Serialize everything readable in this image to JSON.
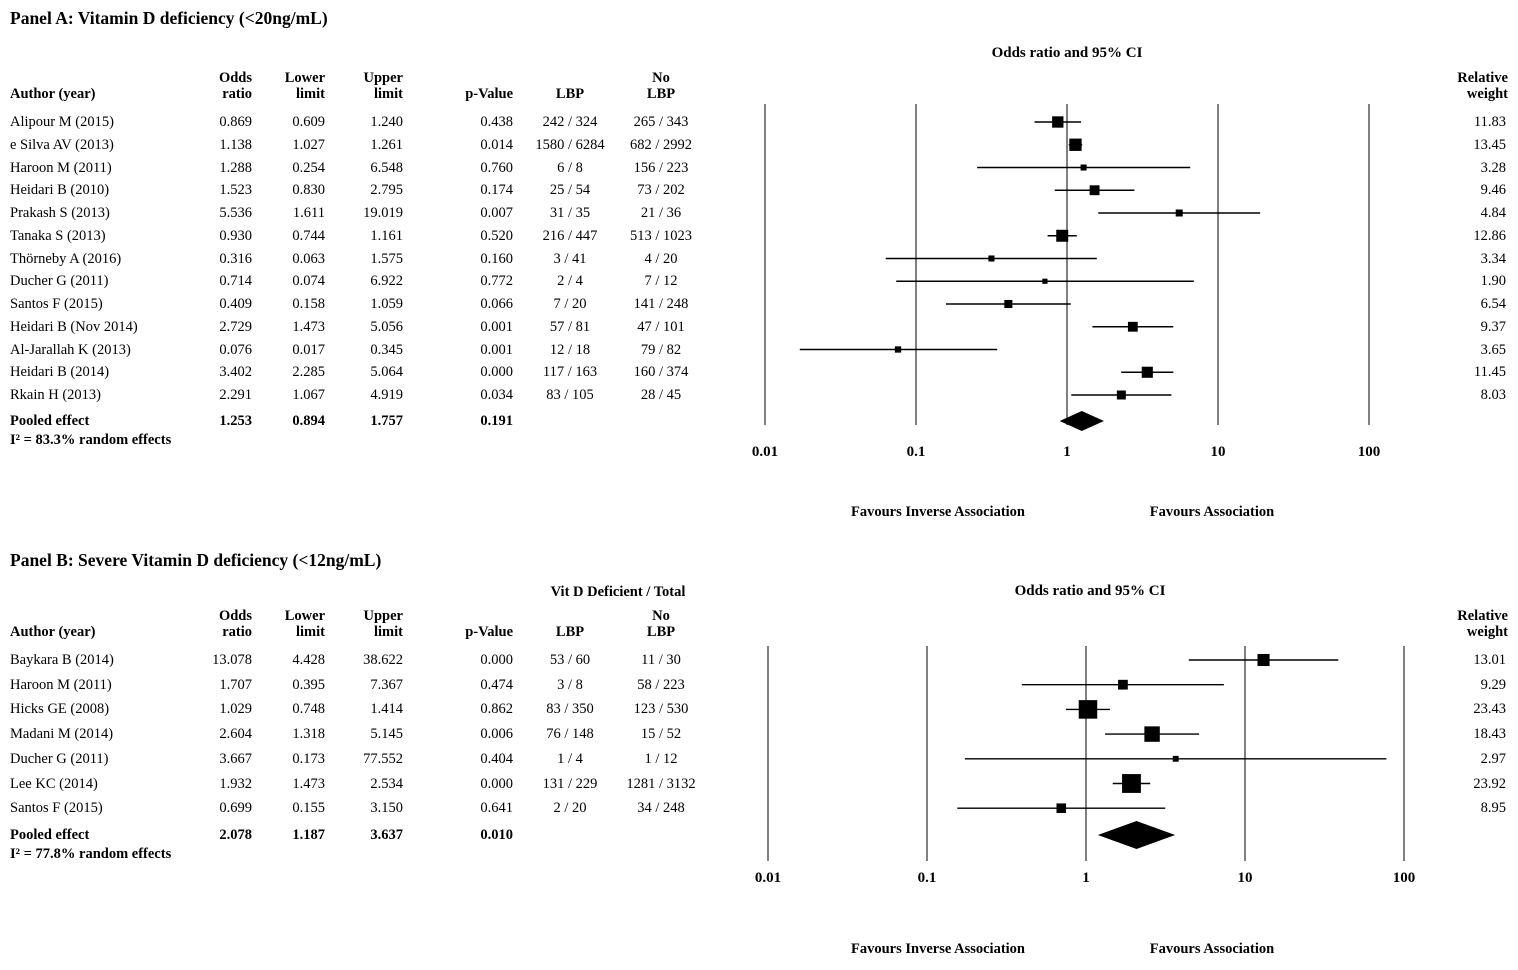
{
  "colors": {
    "ink": "#000000",
    "background": "#ffffff"
  },
  "chart_data": [
    {
      "type": "forest",
      "title": "Panel A: Vitamin D deficiency (<20ng/mL)",
      "plot_title": "Odds ratio and 95% CI",
      "headers": {
        "author": "Author (year)",
        "or1": "Odds",
        "or2": "ratio",
        "lower1": "Lower",
        "lower2": "limit",
        "upper1": "Upper",
        "upper2": "limit",
        "p": "p-Value",
        "lbp": "LBP",
        "nolbp1": "No",
        "nolbp2": "LBP",
        "weight1": "Relative",
        "weight2": "weight"
      },
      "x_axis": {
        "scale": "log",
        "min": 0.01,
        "max": 100,
        "ticks": [
          0.01,
          0.1,
          1,
          10,
          100
        ],
        "tick_labels": [
          "0.01",
          "0.1",
          "1",
          "10",
          "100"
        ]
      },
      "favours_left": "Favours Inverse Association",
      "favours_right": "Favours Association",
      "heterogeneity": "I² = 83.3% random effects",
      "studies": [
        {
          "author": "Alipour M (2015)",
          "or": 0.869,
          "lower": 0.609,
          "upper": 1.24,
          "p": "0.438",
          "lbp": "242 / 324",
          "no_lbp": "265 / 343",
          "weight": 11.83
        },
        {
          "author": "e Silva AV (2013)",
          "or": 1.138,
          "lower": 1.027,
          "upper": 1.261,
          "p": "0.014",
          "lbp": "1580 / 6284",
          "no_lbp": "682 / 2992",
          "weight": 13.45
        },
        {
          "author": "Haroon M (2011)",
          "or": 1.288,
          "lower": 0.254,
          "upper": 6.548,
          "p": "0.760",
          "lbp": "6 / 8",
          "no_lbp": "156 / 223",
          "weight": 3.28
        },
        {
          "author": "Heidari B (2010)",
          "or": 1.523,
          "lower": 0.83,
          "upper": 2.795,
          "p": "0.174",
          "lbp": "25 / 54",
          "no_lbp": "73 / 202",
          "weight": 9.46
        },
        {
          "author": "Prakash S (2013)",
          "or": 5.536,
          "lower": 1.611,
          "upper": 19.019,
          "p": "0.007",
          "lbp": "31 / 35",
          "no_lbp": "21 / 36",
          "weight": 4.84
        },
        {
          "author": "Tanaka S (2013)",
          "or": 0.93,
          "lower": 0.744,
          "upper": 1.161,
          "p": "0.520",
          "lbp": "216 / 447",
          "no_lbp": "513 / 1023",
          "weight": 12.86
        },
        {
          "author": "Thörneby A (2016)",
          "or": 0.316,
          "lower": 0.063,
          "upper": 1.575,
          "p": "0.160",
          "lbp": "3 / 41",
          "no_lbp": "4 / 20",
          "weight": 3.34
        },
        {
          "author": "Ducher G (2011)",
          "or": 0.714,
          "lower": 0.074,
          "upper": 6.922,
          "p": "0.772",
          "lbp": "2 / 4",
          "no_lbp": "7 / 12",
          "weight": 1.9
        },
        {
          "author": "Santos F (2015)",
          "or": 0.409,
          "lower": 0.158,
          "upper": 1.059,
          "p": "0.066",
          "lbp": "7 / 20",
          "no_lbp": "141 / 248",
          "weight": 6.54
        },
        {
          "author": "Heidari B (Nov 2014)",
          "or": 2.729,
          "lower": 1.473,
          "upper": 5.056,
          "p": "0.001",
          "lbp": "57 / 81",
          "no_lbp": "47 / 101",
          "weight": 9.37
        },
        {
          "author": "Al-Jarallah K (2013)",
          "or": 0.076,
          "lower": 0.017,
          "upper": 0.345,
          "p": "0.001",
          "lbp": "12 / 18",
          "no_lbp": "79 / 82",
          "weight": 3.65
        },
        {
          "author": "Heidari B (2014)",
          "or": 3.402,
          "lower": 2.285,
          "upper": 5.064,
          "p": "0.000",
          "lbp": "117 / 163",
          "no_lbp": "160 / 374",
          "weight": 11.45
        },
        {
          "author": "Rkain H (2013)",
          "or": 2.291,
          "lower": 1.067,
          "upper": 4.919,
          "p": "0.034",
          "lbp": "83 / 105",
          "no_lbp": "28 / 45",
          "weight": 8.03
        }
      ],
      "pooled": {
        "label": "Pooled effect",
        "or": 1.253,
        "lower": 0.894,
        "upper": 1.757,
        "p": "0.191"
      }
    },
    {
      "type": "forest",
      "title": "Panel B: Severe Vitamin D deficiency (<12ng/mL)",
      "plot_title": "Odds ratio and 95% CI",
      "numerator_header": "Vit D Deficient  / Total",
      "headers": {
        "author": "Author (year)",
        "or1": "Odds",
        "or2": "ratio",
        "lower1": "Lower",
        "lower2": "limit",
        "upper1": "Upper",
        "upper2": "limit",
        "p": "p-Value",
        "lbp": "LBP",
        "nolbp1": "No",
        "nolbp2": "LBP",
        "weight1": "Relative",
        "weight2": "weight"
      },
      "x_axis": {
        "scale": "log",
        "min": 0.01,
        "max": 100,
        "ticks": [
          0.01,
          0.1,
          1,
          10,
          100
        ],
        "tick_labels": [
          "0.01",
          "0.1",
          "1",
          "10",
          "100"
        ]
      },
      "favours_left": "Favours Inverse Association",
      "favours_right": "Favours Association",
      "heterogeneity": "I² = 77.8% random effects",
      "studies": [
        {
          "author": "Baykara B (2014)",
          "or": 13.078,
          "lower": 4.428,
          "upper": 38.622,
          "p": "0.000",
          "lbp": "53 / 60",
          "no_lbp": "11 / 30",
          "weight": 13.01
        },
        {
          "author": "Haroon M (2011)",
          "or": 1.707,
          "lower": 0.395,
          "upper": 7.367,
          "p": "0.474",
          "lbp": "3 / 8",
          "no_lbp": "58 / 223",
          "weight": 9.29
        },
        {
          "author": "Hicks GE (2008)",
          "or": 1.029,
          "lower": 0.748,
          "upper": 1.414,
          "p": "0.862",
          "lbp": "83 / 350",
          "no_lbp": "123 / 530",
          "weight": 23.43
        },
        {
          "author": "Madani M (2014)",
          "or": 2.604,
          "lower": 1.318,
          "upper": 5.145,
          "p": "0.006",
          "lbp": "76 / 148",
          "no_lbp": "15 / 52",
          "weight": 18.43
        },
        {
          "author": "Ducher G (2011)",
          "or": 3.667,
          "lower": 0.173,
          "upper": 77.552,
          "p": "0.404",
          "lbp": "1 / 4",
          "no_lbp": "1 / 12",
          "weight": 2.97
        },
        {
          "author": "Lee KC (2014)",
          "or": 1.932,
          "lower": 1.473,
          "upper": 2.534,
          "p": "0.000",
          "lbp": "131 / 229",
          "no_lbp": "1281 / 3132",
          "weight": 23.92
        },
        {
          "author": "Santos F (2015)",
          "or": 0.699,
          "lower": 0.155,
          "upper": 3.15,
          "p": "0.641",
          "lbp": "2 / 20",
          "no_lbp": "34 / 248",
          "weight": 8.95
        }
      ],
      "pooled": {
        "label": "Pooled effect",
        "or": 2.078,
        "lower": 1.187,
        "upper": 3.637,
        "p": "0.010"
      }
    }
  ]
}
